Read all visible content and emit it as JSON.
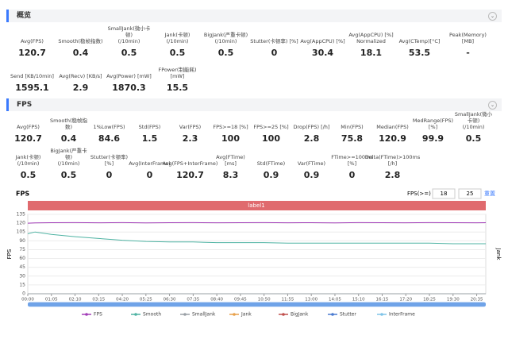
{
  "overview": {
    "title": "概览",
    "rows": [
      [
        {
          "label": "Avg(FPS)",
          "value": 120.7
        },
        {
          "label": "Smooth(稳帧指数)",
          "value": 0.4
        },
        {
          "label": "SmallJank(微小卡顿)\n(/10min)",
          "value": 0.5
        },
        {
          "label": "Jank(卡顿)\n(/10min)",
          "value": 0.5
        },
        {
          "label": "BigJank(严重卡顿)\n(/10min)",
          "value": 0.5
        },
        {
          "label": "Stutter(卡顿率) [%]",
          "value": 0
        },
        {
          "label": "Avg(AppCPU) [%]",
          "value": 30.4
        },
        {
          "label": "Avg(AppCPU) [%]\nNormalized",
          "value": 18.1
        },
        {
          "label": "Avg(CTemp)[°C]",
          "value": 53.5
        },
        {
          "label": "Peak(Memory) [MB]",
          "value": "-"
        }
      ],
      [
        {
          "label": "Send [KB/10min]",
          "value": 1595.1
        },
        {
          "label": "Avg(Recv) [KB/s]",
          "value": 2.9
        },
        {
          "label": "Avg(Power) [mW]",
          "value": 1870.3
        },
        {
          "label": "FPower(制能耗) [mW]",
          "value": 15.5
        }
      ]
    ]
  },
  "fps_section": {
    "title": "FPS",
    "rows": [
      [
        {
          "label": "Avg(FPS)",
          "value": 120.7
        },
        {
          "label": "Smooth(稳帧指数)",
          "value": 0.4
        },
        {
          "label": "1%Low(FPS)",
          "value": 84.6
        },
        {
          "label": "Std(FPS)",
          "value": 1.5
        },
        {
          "label": "Var(FPS)",
          "value": 2.3
        },
        {
          "label": "FPS>=18 [%]",
          "value": 100
        },
        {
          "label": "FPS>=25 [%]",
          "value": 100
        },
        {
          "label": "Drop(FPS) [/h]",
          "value": 2.8
        },
        {
          "label": "Min(FPS)",
          "value": 75.8
        },
        {
          "label": "Median(FPS)",
          "value": 120.9
        },
        {
          "label": "MedRange(FPS)[%]",
          "value": 99.9
        },
        {
          "label": "SmallJank(微小卡顿)\n(/10min)",
          "value": 0.5
        }
      ],
      [
        {
          "label": "Jank(卡顿)\n(/10min)",
          "value": 0.5
        },
        {
          "label": "BigJank(严重卡顿)\n(/10min)",
          "value": 0.5
        },
        {
          "label": "Stutter(卡顿率) [%]",
          "value": 0
        },
        {
          "label": "Avg(InterFrame)",
          "value": 0
        },
        {
          "label": "Avg(FPS+InterFrame)",
          "value": 120.7
        },
        {
          "label": "Avg(FTime) [ms]",
          "value": 8.3
        },
        {
          "label": "Std(FTime)",
          "value": 0.9
        },
        {
          "label": "Var(FTime)",
          "value": 0.9
        },
        {
          "label": "FTime>=100ms [%]",
          "value": 0
        },
        {
          "label": "Delta(FTime)>100ms [/h]",
          "value": 2.8
        }
      ]
    ]
  },
  "chart_data": {
    "type": "line",
    "title": "FPS",
    "filter_label": "FPS(>=)",
    "filter_values": [
      18,
      25
    ],
    "reset_label": "重置",
    "band_label": "label1",
    "y_label": "FPS",
    "y2_label": "Jank",
    "grid": true,
    "x": [
      0,
      20,
      65,
      130,
      195,
      260,
      325,
      390,
      455,
      520,
      585,
      650,
      715,
      780,
      845,
      910,
      975,
      1040,
      1105,
      1170,
      1235,
      1260
    ],
    "xlim": [
      0,
      1260
    ],
    "xticks": [
      {
        "value": 0,
        "label": "00:00"
      },
      {
        "value": 65,
        "label": "01:05"
      },
      {
        "value": 130,
        "label": "02:10"
      },
      {
        "value": 195,
        "label": "03:15"
      },
      {
        "value": 260,
        "label": "04:20"
      },
      {
        "value": 325,
        "label": "05:25"
      },
      {
        "value": 390,
        "label": "06:30"
      },
      {
        "value": 455,
        "label": "07:35"
      },
      {
        "value": 520,
        "label": "08:40"
      },
      {
        "value": 585,
        "label": "09:45"
      },
      {
        "value": 650,
        "label": "10:50"
      },
      {
        "value": 715,
        "label": "11:55"
      },
      {
        "value": 780,
        "label": "13:00"
      },
      {
        "value": 845,
        "label": "14:05"
      },
      {
        "value": 910,
        "label": "15:10"
      },
      {
        "value": 975,
        "label": "16:15"
      },
      {
        "value": 1040,
        "label": "17:20"
      },
      {
        "value": 1105,
        "label": "18:25"
      },
      {
        "value": 1170,
        "label": "19:30"
      },
      {
        "value": 1235,
        "label": "20:35"
      }
    ],
    "ylim": [
      0,
      135
    ],
    "yticks": [
      0,
      15,
      30,
      45,
      60,
      75,
      90,
      105,
      120,
      135
    ],
    "series": [
      {
        "name": "FPS",
        "color": "#a23db8",
        "values": [
          120,
          120.5,
          120.8,
          121,
          120.7,
          120.9,
          120.6,
          120.8,
          121,
          120.7,
          120.8,
          120.9,
          120.7,
          120.8,
          120.6,
          120.9,
          120.8,
          120.7,
          120.9,
          120.8,
          120.7,
          120.8
        ]
      },
      {
        "name": "Smooth",
        "color": "#4fb3a3",
        "values": [
          102,
          105,
          101,
          97,
          94,
          91,
          89,
          88,
          88,
          87,
          87,
          87,
          86,
          86,
          86,
          86,
          86,
          86,
          86,
          85,
          85,
          85
        ]
      },
      {
        "name": "SmallJank",
        "color": "#9aa0a6",
        "values": [
          0,
          0,
          0,
          0,
          0,
          0,
          0,
          0,
          0,
          0,
          0,
          0,
          0,
          0,
          0,
          0,
          0,
          0,
          0,
          0,
          0,
          0
        ]
      },
      {
        "name": "Jank",
        "color": "#e8a14b",
        "values": [
          0,
          0,
          0,
          0,
          0,
          0,
          0,
          0,
          0,
          0,
          0,
          0,
          0,
          0,
          0,
          0,
          0,
          0,
          0,
          0,
          0,
          0
        ]
      },
      {
        "name": "BigJank",
        "color": "#c0504d",
        "values": [
          0,
          0,
          0,
          0,
          0,
          0,
          0,
          0,
          0,
          0,
          0,
          0,
          0,
          0,
          0,
          0,
          0,
          0,
          0,
          0,
          0,
          0
        ]
      },
      {
        "name": "Stutter",
        "color": "#4a7bd0",
        "values": [
          0,
          0,
          0,
          0,
          0,
          0,
          0,
          0,
          0,
          0,
          0,
          0,
          0,
          0,
          0,
          0,
          0,
          0,
          0,
          0,
          0,
          0
        ]
      },
      {
        "name": "InterFrame",
        "color": "#7fc4e8",
        "values": [
          0,
          0,
          0,
          0,
          0,
          0,
          0,
          0,
          0,
          0,
          0,
          0,
          0,
          0,
          0,
          0,
          0,
          0,
          0,
          0,
          0,
          0
        ]
      }
    ]
  }
}
